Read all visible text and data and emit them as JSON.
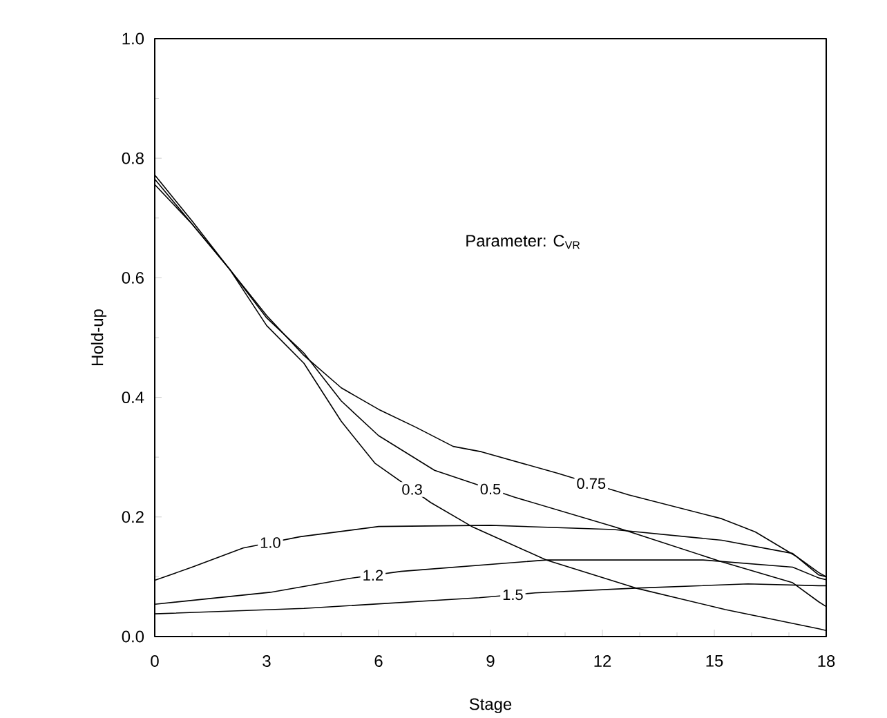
{
  "chart_data": {
    "type": "line",
    "xlabel": "Stage",
    "ylabel": "Hold-up",
    "annotations": [
      "Parameter: C$_{VR}$"
    ],
    "xlim": [
      0,
      18
    ],
    "xticks": [
      0,
      3,
      6,
      9,
      12,
      15,
      18
    ],
    "ylim": [
      0,
      1
    ],
    "yticks": [
      {
        "value": 0,
        "label": "0.0"
      },
      {
        "value": 0.2,
        "label": "0.2"
      },
      {
        "value": 0.4,
        "label": "0.4"
      },
      {
        "value": 0.6,
        "label": "0.6"
      },
      {
        "value": 0.8,
        "label": "0.8"
      },
      {
        "value": 1,
        "label": "1.0"
      }
    ],
    "grid": false,
    "legend": false,
    "marker": "none",
    "line_style": "solid",
    "series": [
      {
        "name": "0.3",
        "color": "#000000",
        "x": [
          0,
          1,
          2,
          3,
          4,
          5,
          5.9,
          7.4,
          8.5,
          10.5,
          12.9,
          15.3,
          17.8,
          18
        ],
        "values": [
          0.756,
          0.69,
          0.615,
          0.52,
          0.457,
          0.36,
          0.29,
          0.224,
          0.184,
          0.128,
          0.081,
          0.045,
          0.013,
          0.01
        ]
      },
      {
        "name": "0.5",
        "color": "#000000",
        "x": [
          0,
          1,
          2,
          3,
          4,
          5,
          6,
          7.5,
          9.65,
          12.3,
          15.2,
          17.1,
          17.8,
          18
        ],
        "values": [
          0.765,
          0.69,
          0.615,
          0.533,
          0.474,
          0.394,
          0.336,
          0.278,
          0.233,
          0.184,
          0.125,
          0.09,
          0.058,
          0.05
        ]
      },
      {
        "name": "0.75",
        "color": "#000000",
        "x": [
          0,
          1,
          2,
          3,
          4,
          5,
          6,
          7,
          8,
          8.76,
          10.8,
          12.7,
          15.2,
          16.1,
          17.2,
          17.8,
          18
        ],
        "values": [
          0.772,
          0.695,
          0.615,
          0.537,
          0.47,
          0.416,
          0.38,
          0.35,
          0.318,
          0.309,
          0.273,
          0.237,
          0.197,
          0.175,
          0.134,
          0.107,
          0.1
        ]
      },
      {
        "name": "1.0",
        "color": "#000000",
        "x": [
          0,
          1,
          2.37,
          3.9,
          6,
          9,
          12.3,
          15.2,
          17.1,
          17.8,
          18
        ],
        "values": [
          0.094,
          0.116,
          0.148,
          0.167,
          0.184,
          0.186,
          0.179,
          0.161,
          0.139,
          0.103,
          0.1
        ]
      },
      {
        "name": "1.2",
        "color": "#000000",
        "x": [
          0,
          3.1,
          5.2,
          6.6,
          10.5,
          14.7,
          17.1,
          17.8,
          18
        ],
        "values": [
          0.054,
          0.074,
          0.097,
          0.109,
          0.128,
          0.128,
          0.116,
          0.098,
          0.095
        ]
      },
      {
        "name": "1.5",
        "color": "#000000",
        "x": [
          0,
          4,
          8.7,
          10.2,
          12.9,
          15.9,
          17.8,
          18
        ],
        "values": [
          0.038,
          0.047,
          0.065,
          0.073,
          0.081,
          0.088,
          0.085,
          0.085
        ]
      }
    ]
  }
}
